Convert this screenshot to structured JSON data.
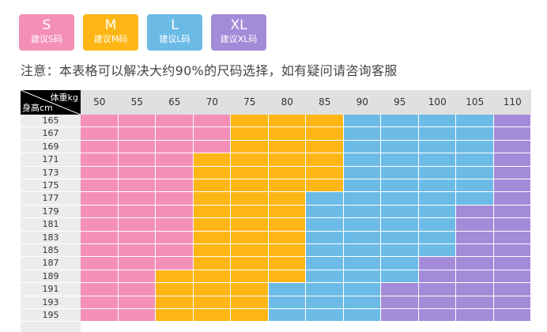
{
  "colors": {
    "S": "#f48fb8",
    "M": "#fdb615",
    "L": "#6cbbe7",
    "XL": "#a48bd8"
  },
  "legend": [
    {
      "size": "S",
      "label": "建议S码"
    },
    {
      "size": "M",
      "label": "建议M码"
    },
    {
      "size": "L",
      "label": "建议L码"
    },
    {
      "size": "XL",
      "label": "建议XL码"
    }
  ],
  "note": "注意：本表格可以解决大约90%的尺码选择，如有疑问请咨询客服",
  "table": {
    "corner_weight": "体重kg",
    "corner_height": "身高cm",
    "weights": [
      "50",
      "55",
      "65",
      "70",
      "75",
      "80",
      "85",
      "90",
      "95",
      "100",
      "105",
      "110"
    ],
    "heights": [
      "165",
      "167",
      "169",
      "171",
      "173",
      "175",
      "177",
      "179",
      "181",
      "183",
      "185",
      "187",
      "189",
      "191",
      "193",
      "195"
    ],
    "rows": [
      [
        "S",
        "S",
        "S",
        "S",
        "M",
        "M",
        "M",
        "L",
        "L",
        "L",
        "L",
        "XL"
      ],
      [
        "S",
        "S",
        "S",
        "S",
        "M",
        "M",
        "M",
        "L",
        "L",
        "L",
        "L",
        "XL"
      ],
      [
        "S",
        "S",
        "S",
        "S",
        "M",
        "M",
        "M",
        "L",
        "L",
        "L",
        "L",
        "XL"
      ],
      [
        "S",
        "S",
        "S",
        "M",
        "M",
        "M",
        "M",
        "L",
        "L",
        "L",
        "L",
        "XL"
      ],
      [
        "S",
        "S",
        "S",
        "M",
        "M",
        "M",
        "M",
        "L",
        "L",
        "L",
        "L",
        "XL"
      ],
      [
        "S",
        "S",
        "S",
        "M",
        "M",
        "M",
        "M",
        "L",
        "L",
        "L",
        "L",
        "XL"
      ],
      [
        "S",
        "S",
        "S",
        "M",
        "M",
        "M",
        "L",
        "L",
        "L",
        "L",
        "L",
        "XL"
      ],
      [
        "S",
        "S",
        "S",
        "M",
        "M",
        "M",
        "L",
        "L",
        "L",
        "L",
        "XL",
        "XL"
      ],
      [
        "S",
        "S",
        "S",
        "M",
        "M",
        "M",
        "L",
        "L",
        "L",
        "L",
        "XL",
        "XL"
      ],
      [
        "S",
        "S",
        "S",
        "M",
        "M",
        "M",
        "L",
        "L",
        "L",
        "L",
        "XL",
        "XL"
      ],
      [
        "S",
        "S",
        "S",
        "M",
        "M",
        "M",
        "L",
        "L",
        "L",
        "L",
        "XL",
        "XL"
      ],
      [
        "S",
        "S",
        "S",
        "M",
        "M",
        "M",
        "L",
        "L",
        "L",
        "XL",
        "XL",
        "XL"
      ],
      [
        "S",
        "S",
        "M",
        "M",
        "M",
        "M",
        "L",
        "L",
        "L",
        "XL",
        "XL",
        "XL"
      ],
      [
        "S",
        "S",
        "M",
        "M",
        "M",
        "L",
        "L",
        "L",
        "XL",
        "XL",
        "XL",
        "XL"
      ],
      [
        "S",
        "S",
        "M",
        "M",
        "M",
        "L",
        "L",
        "L",
        "XL",
        "XL",
        "XL",
        "XL"
      ],
      [
        "S",
        "S",
        "M",
        "M",
        "M",
        "L",
        "L",
        "L",
        "XL",
        "XL",
        "XL",
        "XL"
      ]
    ]
  }
}
